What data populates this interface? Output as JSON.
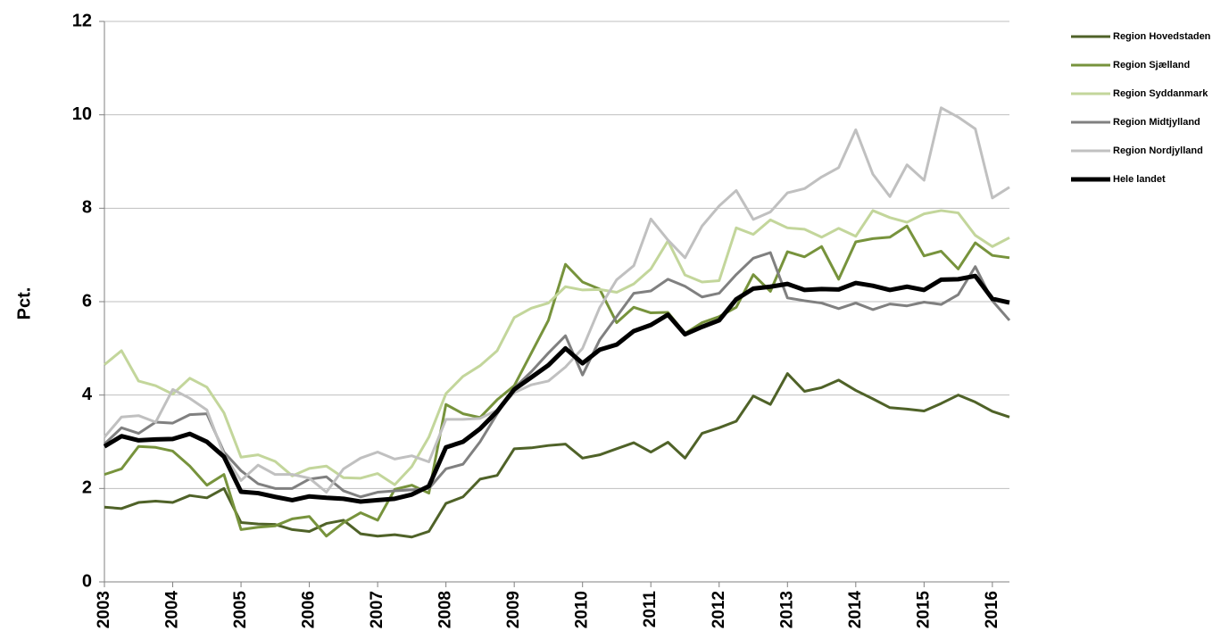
{
  "chart_data": {
    "type": "line",
    "y_label": "Pct.",
    "x": [
      2003,
      2003.25,
      2003.5,
      2003.75,
      2004,
      2004.25,
      2004.5,
      2004.75,
      2005,
      2005.25,
      2005.5,
      2005.75,
      2006,
      2006.25,
      2006.5,
      2006.75,
      2007,
      2007.25,
      2007.5,
      2007.75,
      2008,
      2008.25,
      2008.5,
      2008.75,
      2009,
      2009.25,
      2009.5,
      2009.75,
      2010,
      2010.25,
      2010.5,
      2010.75,
      2011,
      2011.25,
      2011.5,
      2011.75,
      2012,
      2012.25,
      2012.5,
      2012.75,
      2013,
      2013.25,
      2013.5,
      2013.75,
      2014,
      2014.25,
      2014.5,
      2014.75,
      2015,
      2015.25,
      2015.5,
      2015.75,
      2016,
      2016.25
    ],
    "xlim": [
      2003,
      2016.25
    ],
    "xticks": [
      2003,
      2004,
      2005,
      2006,
      2007,
      2008,
      2009,
      2010,
      2011,
      2012,
      2013,
      2014,
      2015,
      2016
    ],
    "ylim": [
      0,
      12
    ],
    "yticks": [
      0,
      2,
      4,
      6,
      8,
      10,
      12
    ],
    "grid": true,
    "series": [
      {
        "name": "Region Hovedstaden",
        "color": "#4f6228",
        "line_width": 3,
        "values": [
          1.6,
          1.57,
          1.7,
          1.73,
          1.7,
          1.85,
          1.8,
          2.0,
          1.27,
          1.24,
          1.23,
          1.12,
          1.08,
          1.25,
          1.32,
          1.03,
          0.98,
          1.01,
          0.96,
          1.08,
          1.68,
          1.82,
          2.2,
          2.28,
          2.85,
          2.87,
          2.92,
          2.95,
          2.65,
          2.72,
          2.85,
          2.98,
          2.78,
          2.99,
          2.65,
          3.18,
          3.3,
          3.44,
          3.98,
          3.8,
          4.46,
          4.08,
          4.16,
          4.32,
          4.1,
          3.92,
          3.73,
          3.7,
          3.66,
          3.82,
          4.0,
          3.85,
          3.65,
          3.53
        ]
      },
      {
        "name": "Region Sjælland",
        "color": "#77933c",
        "line_width": 3,
        "values": [
          2.3,
          2.42,
          2.9,
          2.88,
          2.8,
          2.48,
          2.07,
          2.3,
          1.12,
          1.17,
          1.2,
          1.35,
          1.4,
          0.98,
          1.27,
          1.48,
          1.32,
          1.98,
          2.07,
          1.9,
          3.8,
          3.6,
          3.52,
          3.9,
          4.2,
          4.9,
          5.6,
          6.8,
          6.42,
          6.27,
          5.55,
          5.88,
          5.76,
          5.77,
          5.32,
          5.55,
          5.68,
          5.88,
          6.58,
          6.22,
          7.07,
          6.96,
          7.18,
          6.48,
          7.28,
          7.35,
          7.38,
          7.62,
          6.98,
          7.08,
          6.7,
          7.26,
          6.99,
          6.94
        ]
      },
      {
        "name": "Region Syddanmark",
        "color": "#c3d69b",
        "line_width": 3,
        "values": [
          4.65,
          4.95,
          4.3,
          4.2,
          4.02,
          4.36,
          4.17,
          3.62,
          2.67,
          2.72,
          2.58,
          2.27,
          2.43,
          2.48,
          2.23,
          2.22,
          2.32,
          2.08,
          2.47,
          3.1,
          4.03,
          4.4,
          4.63,
          4.95,
          5.66,
          5.86,
          5.97,
          6.32,
          6.25,
          6.26,
          6.2,
          6.38,
          6.7,
          7.3,
          6.57,
          6.42,
          6.45,
          7.58,
          7.44,
          7.75,
          7.58,
          7.55,
          7.38,
          7.57,
          7.4,
          7.95,
          7.8,
          7.7,
          7.88,
          7.95,
          7.9,
          7.42,
          7.18,
          7.37
        ]
      },
      {
        "name": "Region Midtjylland",
        "color": "#808080",
        "line_width": 3,
        "values": [
          2.95,
          3.3,
          3.18,
          3.42,
          3.4,
          3.58,
          3.6,
          2.78,
          2.38,
          2.1,
          2.0,
          2.0,
          2.2,
          2.25,
          1.95,
          1.82,
          1.92,
          1.95,
          1.97,
          2.0,
          2.42,
          2.52,
          3.0,
          3.6,
          4.15,
          4.5,
          4.9,
          5.27,
          4.43,
          5.18,
          5.68,
          6.18,
          6.23,
          6.48,
          6.33,
          6.1,
          6.18,
          6.58,
          6.93,
          7.05,
          6.08,
          6.02,
          5.97,
          5.85,
          5.97,
          5.83,
          5.95,
          5.91,
          5.99,
          5.94,
          6.15,
          6.75,
          6.02,
          5.6
        ]
      },
      {
        "name": "Region Nordjylland",
        "color": "#c0c0c0",
        "line_width": 3,
        "values": [
          3.1,
          3.53,
          3.56,
          3.42,
          4.12,
          3.93,
          3.68,
          2.72,
          2.17,
          2.5,
          2.3,
          2.3,
          2.22,
          1.92,
          2.42,
          2.65,
          2.78,
          2.63,
          2.7,
          2.57,
          3.48,
          3.48,
          3.5,
          3.68,
          4.05,
          4.22,
          4.3,
          4.6,
          5.0,
          5.87,
          6.47,
          6.77,
          7.77,
          7.32,
          6.94,
          7.62,
          8.05,
          8.38,
          7.76,
          7.92,
          8.33,
          8.42,
          8.67,
          8.87,
          9.68,
          8.73,
          8.25,
          8.93,
          8.6,
          10.15,
          9.95,
          9.7,
          8.22,
          8.45
        ]
      },
      {
        "name": "Hele landet",
        "color": "#000000",
        "line_width": 5,
        "values": [
          2.9,
          3.12,
          3.03,
          3.05,
          3.06,
          3.17,
          3.0,
          2.68,
          1.93,
          1.9,
          1.82,
          1.75,
          1.83,
          1.8,
          1.78,
          1.72,
          1.75,
          1.78,
          1.87,
          2.05,
          2.88,
          3.0,
          3.28,
          3.65,
          4.12,
          4.38,
          4.64,
          5.0,
          4.68,
          4.97,
          5.08,
          5.37,
          5.5,
          5.72,
          5.3,
          5.46,
          5.6,
          6.05,
          6.28,
          6.32,
          6.38,
          6.25,
          6.27,
          6.26,
          6.4,
          6.34,
          6.25,
          6.32,
          6.25,
          6.47,
          6.48,
          6.55,
          6.06,
          5.98
        ]
      }
    ]
  }
}
